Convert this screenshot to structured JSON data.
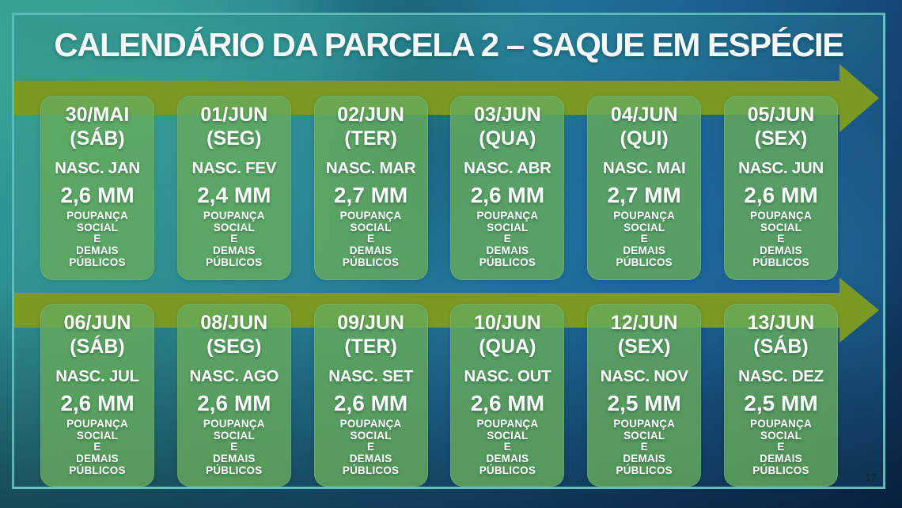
{
  "slide": {
    "title": "CALENDÁRIO DA PARCELA 2 – SAQUE EM ESPÉCIE",
    "page_number": "17"
  },
  "note_lines": [
    "POUPANÇA",
    "SOCIAL",
    "E",
    "DEMAIS",
    "PÚBLICOS"
  ],
  "rows": [
    {
      "cards": [
        {
          "date": "30/MAI",
          "weekday": "(SÁB)",
          "group": "NASC. JAN",
          "amount": "2,6 MM"
        },
        {
          "date": "01/JUN",
          "weekday": "(SEG)",
          "group": "NASC. FEV",
          "amount": "2,4 MM"
        },
        {
          "date": "02/JUN",
          "weekday": "(TER)",
          "group": "NASC. MAR",
          "amount": "2,7 MM"
        },
        {
          "date": "03/JUN",
          "weekday": "(QUA)",
          "group": "NASC. ABR",
          "amount": "2,6 MM"
        },
        {
          "date": "04/JUN",
          "weekday": "(QUI)",
          "group": "NASC. MAI",
          "amount": "2,7 MM"
        },
        {
          "date": "05/JUN",
          "weekday": "(SEX)",
          "group": "NASC. JUN",
          "amount": "2,6 MM"
        }
      ]
    },
    {
      "cards": [
        {
          "date": "06/JUN",
          "weekday": "(SÁB)",
          "group": "NASC. JUL",
          "amount": "2,6 MM"
        },
        {
          "date": "08/JUN",
          "weekday": "(SEG)",
          "group": "NASC. AGO",
          "amount": "2,6 MM"
        },
        {
          "date": "09/JUN",
          "weekday": "(TER)",
          "group": "NASC. SET",
          "amount": "2,6 MM"
        },
        {
          "date": "10/JUN",
          "weekday": "(QUA)",
          "group": "NASC. OUT",
          "amount": "2,6 MM"
        },
        {
          "date": "12/JUN",
          "weekday": "(SEX)",
          "group": "NASC. NOV",
          "amount": "2,5 MM"
        },
        {
          "date": "13/JUN",
          "weekday": "(SÁB)",
          "group": "NASC. DEZ",
          "amount": "2,5 MM"
        }
      ]
    }
  ],
  "colors": {
    "arrow_olive": "#7a9a24",
    "card_green": "rgba(101,171,91,0.82)",
    "frame_teal": "rgba(105,205,198,0.85)",
    "title_text": "#f4fbfa",
    "background_teal": "#2f9a92",
    "background_blue": "#1b6192"
  }
}
